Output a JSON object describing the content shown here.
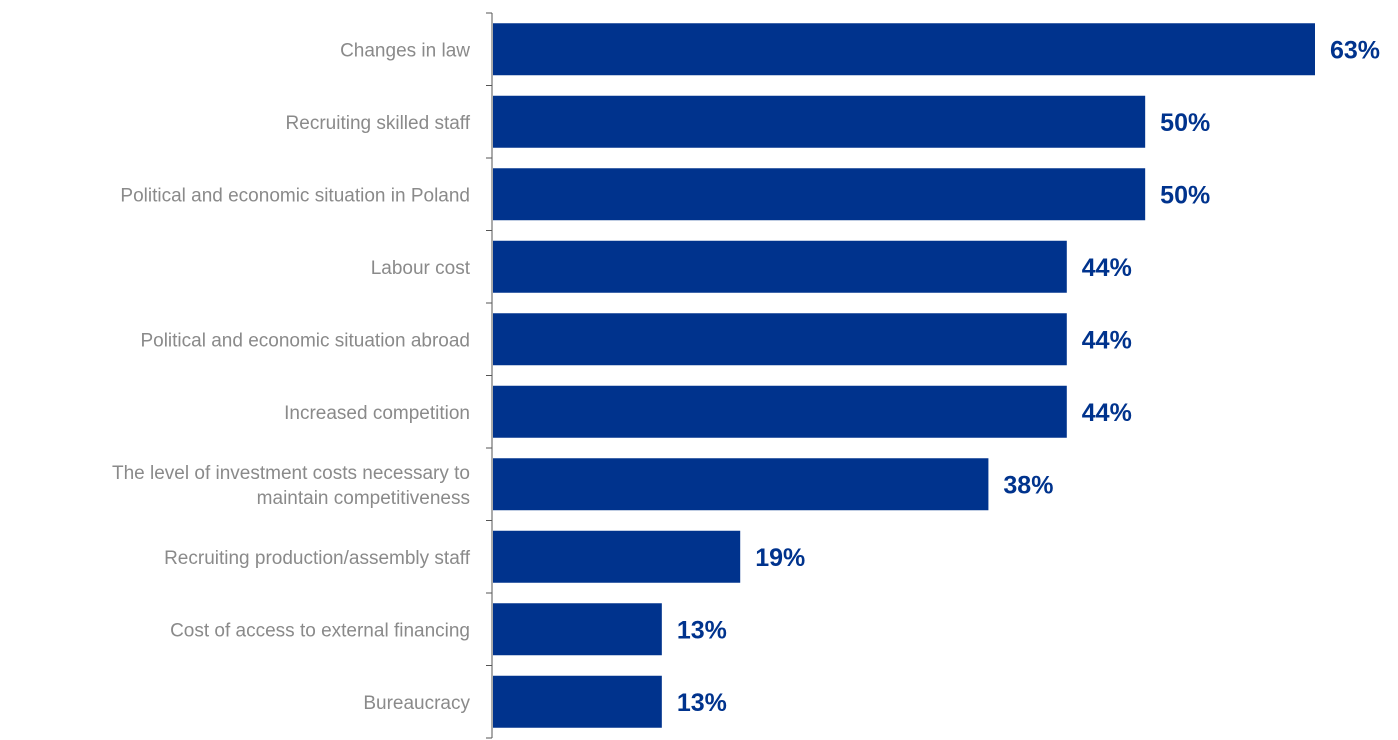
{
  "chart_data": {
    "type": "bar",
    "orientation": "horizontal",
    "categories": [
      [
        "Changes in law"
      ],
      [
        "Recruiting skilled staff"
      ],
      [
        "Political and economic situation in Poland"
      ],
      [
        "Labour cost"
      ],
      [
        "Political and economic situation abroad"
      ],
      [
        "Increased competition"
      ],
      [
        "The level of investment costs necessary to",
        "maintain competitiveness"
      ],
      [
        "Recruiting production/assembly staff"
      ],
      [
        "Cost of access to external financing"
      ],
      [
        "Bureaucracy"
      ]
    ],
    "values": [
      63,
      50,
      50,
      44,
      44,
      44,
      38,
      19,
      13,
      13
    ],
    "value_labels": [
      "63%",
      "50%",
      "50%",
      "44%",
      "44%",
      "44%",
      "38%",
      "19%",
      "13%",
      "13%"
    ],
    "unit": "%",
    "xlim": [
      0,
      63
    ],
    "grid": false,
    "legend": "none",
    "colors": {
      "bar": "#00338d",
      "value_label": "#00338d",
      "category_label": "#8a8a8a",
      "axis": "#555555"
    }
  }
}
